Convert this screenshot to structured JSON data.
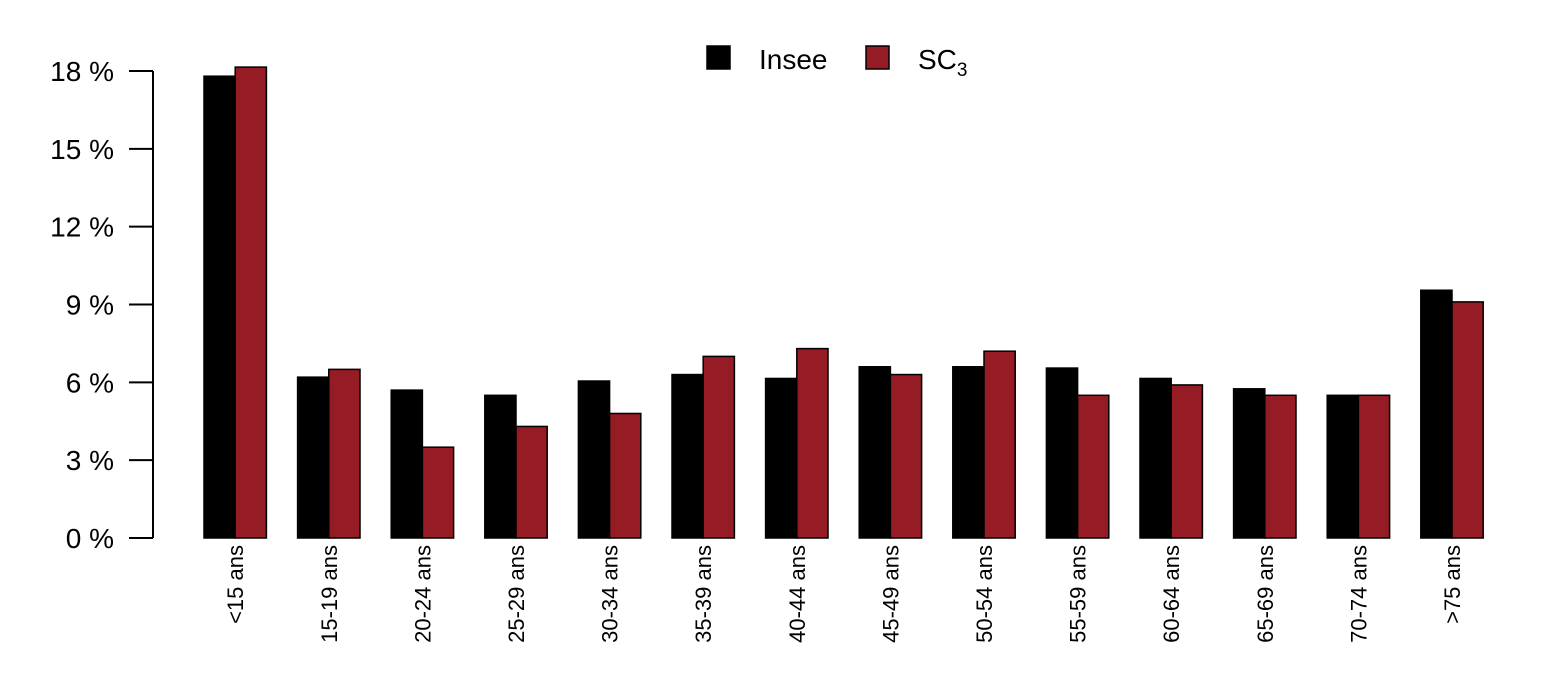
{
  "chart_data": {
    "type": "bar",
    "title": "",
    "xlabel": "",
    "ylabel": "",
    "categories": [
      "<15 ans",
      "15-19 ans",
      "20-24 ans",
      "25-29 ans",
      "30-34 ans",
      "35-39 ans",
      "40-44 ans",
      "45-49 ans",
      "50-54 ans",
      "55-59 ans",
      "60-64 ans",
      "65-69 ans",
      "70-74 ans",
      ">75 ans"
    ],
    "series": [
      {
        "name": "Insee",
        "color": "#000000",
        "values": [
          17.8,
          6.2,
          5.7,
          5.5,
          6.05,
          6.3,
          6.15,
          6.6,
          6.6,
          6.55,
          6.15,
          5.75,
          5.5,
          9.55
        ]
      },
      {
        "name": "SC3",
        "color": "#951b24",
        "values": [
          18.15,
          6.5,
          3.5,
          4.3,
          4.8,
          7.0,
          7.3,
          6.3,
          7.2,
          5.5,
          5.9,
          5.5,
          5.5,
          9.1
        ]
      }
    ],
    "ylim": [
      0,
      18
    ],
    "yticks": [
      0,
      3,
      6,
      9,
      12,
      15,
      18
    ],
    "ytick_suffix": " %",
    "legend": {
      "position": "top-center",
      "entries": [
        {
          "label": "Insee",
          "subscript": ""
        },
        {
          "label": "SC",
          "subscript": "3"
        }
      ]
    },
    "grid": false
  }
}
